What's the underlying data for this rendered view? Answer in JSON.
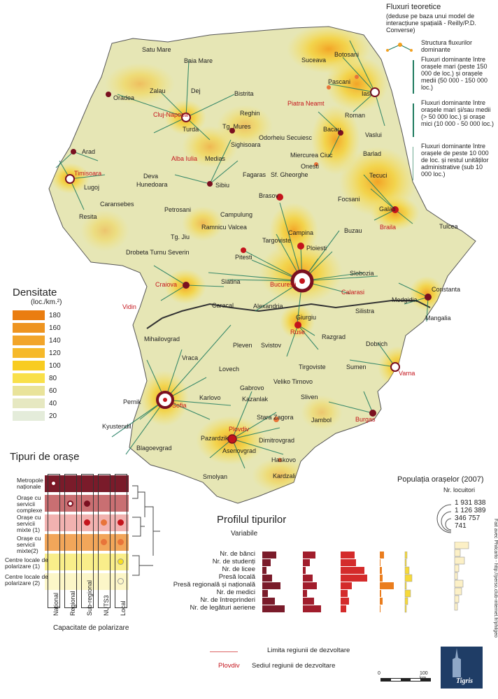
{
  "map": {
    "cities_black": [
      "Satu Mare",
      "Baia Mare",
      "Zalau",
      "Dej",
      "Bistrita",
      "Oradea",
      "Reghin",
      "Turda",
      "Tg. Mures",
      "Arad",
      "Medias",
      "Sighisoara",
      "Odorheiu Secuiesc",
      "Miercurea Ciuc",
      "Deva",
      "Hunedoara",
      "Sibiu",
      "Fagaras",
      "Sf. Gheorghe",
      "Lugoj",
      "Caransebes",
      "Resita",
      "Petrosani",
      "Brasov",
      "Campulung",
      "Ramnicu Valcea",
      "Tg. Jiu",
      "Targoviste",
      "Campina",
      "Ploiesti",
      "Buzau",
      "Drobeta Turnu Severin",
      "Pitesti",
      "Slatina",
      "Caracal",
      "Alexandria",
      "Slobozia",
      "Constanta",
      "Medgidia",
      "Mangalia",
      "Silistra",
      "Giurgiu",
      "Botosani",
      "Suceava",
      "Pascani",
      "Iasi",
      "Roman",
      "Bacau",
      "Vaslui",
      "Onesti",
      "Barlad",
      "Tecuci",
      "Focsani",
      "Galati",
      "Tulcea",
      "Mihailovgrad",
      "Vraca",
      "Pleven",
      "Svistov",
      "Razgrad",
      "Dobrich",
      "Tirgoviste",
      "Sumen",
      "Lovech",
      "Gabrovo",
      "Veliko Tirnovo",
      "Pernik",
      "Karlovo",
      "Kazanlak",
      "Sliven",
      "Kyustendil",
      "Stara Zagora",
      "Jambol",
      "Blagoevgrad",
      "Pazardzik",
      "Dimitrovgrad",
      "Asenovgrad",
      "Haskovo",
      "Smolyan",
      "Kardzali"
    ],
    "cities_red": [
      "Cluj-Napoca",
      "Alba Iulia",
      "Timisoara",
      "Piatra Neamt",
      "Braila",
      "Craiova",
      "Bucuresti",
      "Calarasi",
      "Vidin",
      "Ruse",
      "Varna",
      "Sofia",
      "Burgas",
      "Plovdiv"
    ]
  },
  "flux_legend": {
    "title": "Fluxuri teoretice",
    "subtitle": "(deduse pe baza unui model de interacțiune spațială - Reilly/P.D. Converse)",
    "items": [
      "Structura fluxurilor dominante",
      "Fluxuri dominante între orașele mari (peste 150 000 de loc.) și orașele medii (50 000 - 150 000 loc.)",
      "Fluxuri dominante între orașele mari și/sau medii (> 50 000 loc.) și orașe mici (10 000 - 50 000 loc.)",
      "Fluxuri dominante între orașele de peste 10 000 de loc. și restul unităților administrative (sub 10 000 loc.)"
    ]
  },
  "density_legend": {
    "title": "Densitate",
    "unit": "(loc./km.²)",
    "values": [
      "180",
      "160",
      "140",
      "120",
      "100",
      "80",
      "60",
      "40",
      "20"
    ],
    "colors": [
      "#ea7d10",
      "#ee9420",
      "#f2a52a",
      "#f6b92a",
      "#f8cc20",
      "#f9e04a",
      "#e9e39a",
      "#e6e8c1",
      "#e4ecda"
    ]
  },
  "types_legend": {
    "title": "Tipuri de orașe",
    "types": [
      "Metropole naționale",
      "Orașe cu servicii complexe",
      "Orașe cu servicii mixte (1)",
      "Orașe cu servicii mixte(2)",
      "Centre locale de polarizare (1)",
      "Centre locale de polarizare (2)"
    ],
    "columns": [
      "Național",
      "Regional",
      "Sub-regional",
      "NUTS3",
      "Local"
    ],
    "footer": "Capacitate de polarizare"
  },
  "profile_legend": {
    "title": "Profilul tipurilor",
    "subtitle": "Variabile",
    "variables": [
      "Nr. de bănci",
      "Nr. de studenți",
      "Nr. de licee",
      "Presă locală",
      "Presă regională și națională",
      "Nr. de medici",
      "Nr. de întreprinderi",
      "Nr. de legături aeriene"
    ]
  },
  "population_legend": {
    "title": "Populația orașelor (2007)",
    "subtitle": "Nr. locuitori",
    "values": [
      "1 931 838",
      "1 126 389",
      "346 757",
      "741"
    ]
  },
  "boundary_legend": {
    "region_limit": "Limita regiunii de dezvoltare",
    "seat_example": "Plovdiv",
    "seat_label": "Sediul regiunii de dezvoltare"
  },
  "scale": {
    "zero": "0",
    "max": "100 km"
  },
  "logo": "Tigris",
  "credit": "Fait avec Philcarto - http://perso.club-internet.fr/philgeo"
}
